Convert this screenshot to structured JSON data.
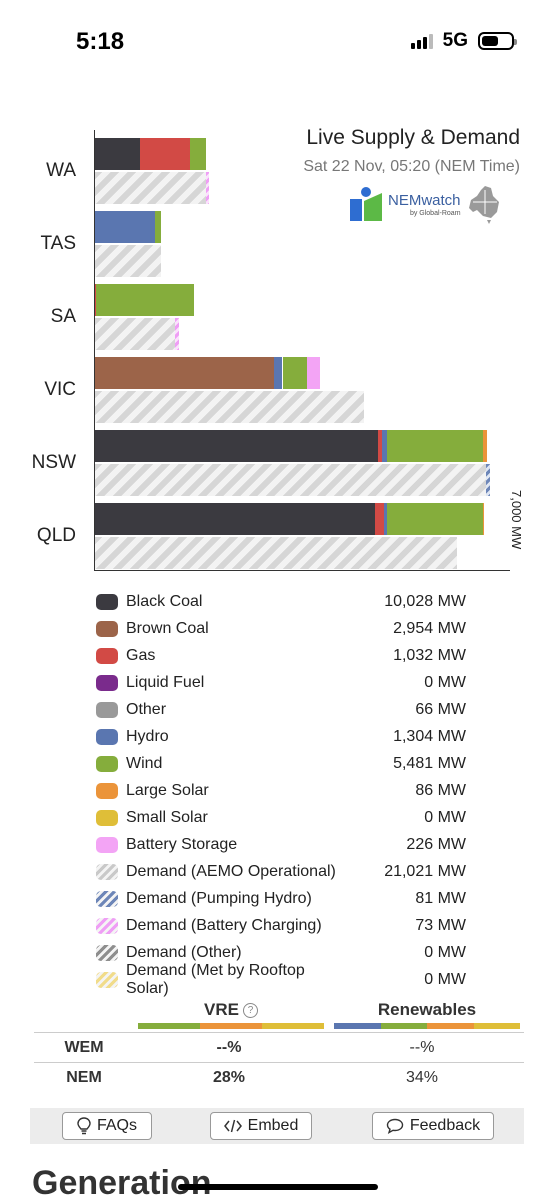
{
  "status_bar": {
    "time": "5:18",
    "network": "5G"
  },
  "header": {
    "title": "Live Supply & Demand",
    "subtitle": "Sat 22 Nov, 05:20 (NEM Time)",
    "logo_text": "NEMwatch",
    "logo_subtext": "by Global-Roam"
  },
  "colors": {
    "black_coal": "#3b3a40",
    "brown_coal": "#9c6449",
    "gas": "#d24a45",
    "liquid_fuel": "#7a2b8c",
    "other": "#999999",
    "hydro": "#5a76b0",
    "wind": "#85ad3c",
    "large_solar": "#eb943a",
    "small_solar": "#dfbe38",
    "battery_storage": "#f3a4f5",
    "demand_hatch": "#d6d6d6"
  },
  "chart_data": {
    "type": "bar",
    "orientation": "horizontal",
    "stacked": true,
    "categories": [
      "WA",
      "TAS",
      "SA",
      "VIC",
      "NSW",
      "QLD"
    ],
    "axis_label": "7,000 MW",
    "xlim": [
      0,
      7000
    ],
    "supply_series": [
      {
        "name": "Black Coal",
        "color_key": "black_coal",
        "values": [
          800,
          0,
          0,
          0,
          4900,
          4850
        ]
      },
      {
        "name": "Brown Coal",
        "color_key": "brown_coal",
        "values": [
          0,
          0,
          0,
          3100,
          0,
          0
        ]
      },
      {
        "name": "Gas",
        "color_key": "gas",
        "values": [
          850,
          0,
          30,
          0,
          60,
          150
        ]
      },
      {
        "name": "Hydro",
        "color_key": "hydro",
        "values": [
          0,
          1050,
          0,
          150,
          100,
          60
        ]
      },
      {
        "name": "Wind",
        "color_key": "wind",
        "values": [
          280,
          100,
          1700,
          420,
          1650,
          1650
        ]
      },
      {
        "name": "Large Solar",
        "color_key": "large_solar",
        "values": [
          0,
          0,
          0,
          0,
          60,
          20
        ]
      },
      {
        "name": "Battery Storage",
        "color_key": "battery_storage",
        "values": [
          0,
          0,
          0,
          220,
          0,
          0
        ]
      }
    ],
    "demand_series": [
      {
        "name": "Demand (AEMO Operational)",
        "values": [
          1930,
          1160,
          1400,
          4650,
          6750,
          6250
        ]
      },
      {
        "name": "Demand (Pumping Hydro)",
        "values": [
          0,
          0,
          0,
          0,
          81,
          0
        ]
      },
      {
        "name": "Demand (Battery Charging)",
        "values": [
          30,
          0,
          73,
          0,
          0,
          0
        ]
      }
    ]
  },
  "legend": [
    {
      "name": "Black Coal",
      "value": "10,028 MW",
      "swatch": "#3b3a40",
      "pattern": "solid"
    },
    {
      "name": "Brown Coal",
      "value": "2,954 MW",
      "swatch": "#9c6449",
      "pattern": "solid"
    },
    {
      "name": "Gas",
      "value": "1,032 MW",
      "swatch": "#d24a45",
      "pattern": "solid"
    },
    {
      "name": "Liquid Fuel",
      "value": "0 MW",
      "swatch": "#7a2b8c",
      "pattern": "solid"
    },
    {
      "name": "Other",
      "value": "66 MW",
      "swatch": "#999999",
      "pattern": "solid"
    },
    {
      "name": "Hydro",
      "value": "1,304 MW",
      "swatch": "#5a76b0",
      "pattern": "solid"
    },
    {
      "name": "Wind",
      "value": "5,481 MW",
      "swatch": "#85ad3c",
      "pattern": "solid"
    },
    {
      "name": "Large Solar",
      "value": "86 MW",
      "swatch": "#eb943a",
      "pattern": "solid"
    },
    {
      "name": "Small Solar",
      "value": "0 MW",
      "swatch": "#dfbe38",
      "pattern": "solid"
    },
    {
      "name": "Battery Storage",
      "value": "226 MW",
      "swatch": "#f3a4f5",
      "pattern": "solid"
    },
    {
      "name": "Demand (AEMO Operational)",
      "value": "21,021 MW",
      "swatch": "#c9c9c9",
      "pattern": "hatch"
    },
    {
      "name": "Demand (Pumping Hydro)",
      "value": "81 MW",
      "swatch": "#6d86b8",
      "pattern": "hatch"
    },
    {
      "name": "Demand (Battery Charging)",
      "value": "73 MW",
      "swatch": "#ef9ef5",
      "pattern": "hatch"
    },
    {
      "name": "Demand (Other)",
      "value": "0 MW",
      "swatch": "#8e8e8e",
      "pattern": "hatch"
    },
    {
      "name": "Demand (Met by Rooftop Solar)",
      "value": "0 MW",
      "swatch": "#f1dc8a",
      "pattern": "hatch"
    }
  ],
  "summary": {
    "vre_label": "VRE",
    "renewables_label": "Renewables",
    "info_glyph": "?",
    "vre_stripe": [
      "#85ad3c",
      "#eb943a",
      "#dfbe38"
    ],
    "renewables_stripe": [
      "#5a76b0",
      "#85ad3c",
      "#eb943a",
      "#dfbe38"
    ],
    "rows": [
      {
        "label": "WEM",
        "vre": "--%",
        "renewables": "--%"
      },
      {
        "label": "NEM",
        "vre": "28%",
        "renewables": "34%"
      }
    ]
  },
  "buttons": {
    "faqs": "FAQs",
    "embed": "Embed",
    "feedback": "Feedback"
  },
  "section_heading": "Generation"
}
